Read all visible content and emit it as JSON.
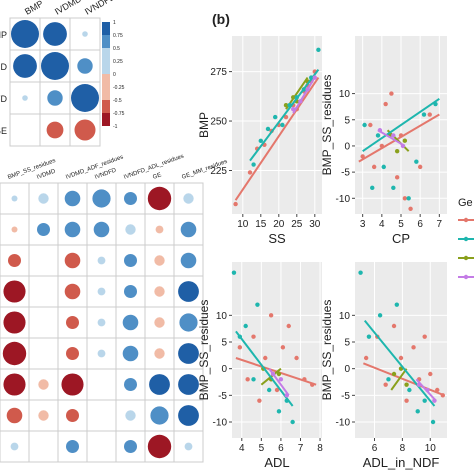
{
  "panel_b_label": "(b)",
  "legend_title": "Ge",
  "colors": {
    "red": "#e4776c",
    "green": "#8aa01c",
    "teal": "#1eb6ae",
    "purple": "#c47ce6",
    "pos_dark": "#1f5fa6",
    "pos_mid": "#4f8fc6",
    "pos_light": "#b9d6ea",
    "neg_dark": "#9d1724",
    "neg_mid": "#d05a4c",
    "neg_light": "#f1bba6",
    "panel_bg": "#ebebeb",
    "grid": "#ffffff"
  },
  "corr_top": {
    "row_labels": [
      "BMP",
      "IVDMD",
      "IVNDFD",
      "GE"
    ],
    "col_labels": [
      "BMP",
      "IVDMD",
      "IVNDFD"
    ],
    "colorbar_ticks": [
      "1",
      "0.75",
      "0.5",
      "0.25",
      "0",
      "-0.25",
      "-0.5",
      "-0.75",
      "-1"
    ],
    "cells": [
      [
        1.0,
        0.85,
        0.2
      ],
      [
        0.85,
        1.0,
        0.55
      ],
      [
        0.2,
        0.55,
        1.0
      ],
      [
        0.0,
        -0.6,
        -0.75
      ]
    ]
  },
  "corr_bottom": {
    "col_labels": [
      "BMP_SS_residues",
      "IVDMD",
      "IVDMD_ADF_residues",
      "IVNDFD",
      "IVNDFD_ADL_residues",
      "GE",
      "GE_MM_residues"
    ],
    "cells": [
      [
        0.2,
        0.4,
        0.6,
        0.7,
        0.5,
        -0.9,
        0.4
      ],
      [
        -0.2,
        0.5,
        0.6,
        0.6,
        0.4,
        -0.3,
        0.6
      ],
      [
        -0.5,
        0.0,
        -0.6,
        0.3,
        0.5,
        -0.4,
        0.6
      ],
      [
        -0.85,
        0.0,
        -0.6,
        0.3,
        0.5,
        -0.4,
        0.8
      ],
      [
        -0.85,
        0.0,
        -0.5,
        0.3,
        0.6,
        -0.4,
        0.7
      ],
      [
        -0.9,
        0.0,
        -0.5,
        0.3,
        0.6,
        -0.4,
        0.8
      ],
      [
        -0.85,
        -0.4,
        -0.85,
        0.0,
        0.5,
        0.8,
        0.8
      ],
      [
        -0.6,
        -0.4,
        -0.5,
        0.0,
        0.4,
        0.7,
        0.8
      ],
      [
        0.3,
        0.0,
        0.5,
        0.0,
        0.5,
        -0.9,
        0.3
      ]
    ]
  },
  "chart_data": [
    {
      "type": "scatter",
      "xlabel": "SS",
      "ylabel": "BMP",
      "xlim": [
        7,
        32
      ],
      "ylim": [
        203,
        293
      ],
      "xticks": [
        10,
        15,
        20,
        25,
        30
      ],
      "yticks": [
        225,
        250,
        275
      ],
      "series": [
        {
          "color": "red",
          "points": [
            [
              8,
              208
            ],
            [
              12,
              224
            ],
            [
              14,
              236
            ],
            [
              16,
              238
            ],
            [
              18,
              245
            ],
            [
              20,
              248
            ],
            [
              22,
              252
            ],
            [
              24,
              258
            ],
            [
              25,
              256
            ],
            [
              27,
              265
            ],
            [
              28,
              268
            ],
            [
              29,
              270
            ],
            [
              30,
              275
            ]
          ],
          "fit": [
            [
              8,
              210
            ],
            [
              31,
              272
            ]
          ]
        },
        {
          "color": "green",
          "points": [
            [
              22,
              258
            ],
            [
              24,
              262
            ],
            [
              25,
              260
            ],
            [
              27,
              266
            ],
            [
              28,
              270
            ]
          ],
          "fit": [
            [
              22,
              256
            ],
            [
              28,
              272
            ]
          ]
        },
        {
          "color": "teal",
          "points": [
            [
              13,
              228
            ],
            [
              15,
              240
            ],
            [
              17,
              246
            ],
            [
              19,
              252
            ],
            [
              21,
              248
            ],
            [
              23,
              258
            ],
            [
              25,
              262
            ],
            [
              27,
              266
            ],
            [
              29,
              272
            ],
            [
              31,
              286
            ]
          ],
          "fit": [
            [
              12,
              230
            ],
            [
              31,
              276
            ]
          ]
        },
        {
          "color": "purple",
          "points": [
            [
              24,
              256
            ],
            [
              26,
              260
            ],
            [
              28,
              266
            ],
            [
              30,
              272
            ]
          ],
          "fit": [
            [
              24,
              254
            ],
            [
              30,
              272
            ]
          ]
        }
      ]
    },
    {
      "type": "scatter",
      "xlabel": "CP",
      "ylabel": "BMP_SS_residues",
      "xlim": [
        2.6,
        7.4
      ],
      "ylim": [
        -13,
        21
      ],
      "xticks": [
        3,
        4,
        5,
        6,
        7
      ],
      "yticks": [
        -10,
        -5,
        0,
        5,
        10
      ],
      "series": [
        {
          "color": "red",
          "points": [
            [
              3,
              -2
            ],
            [
              3.4,
              4
            ],
            [
              3.6,
              -4
            ],
            [
              4,
              0
            ],
            [
              4.2,
              8
            ],
            [
              4.5,
              10
            ],
            [
              4.8,
              -6
            ],
            [
              5,
              2
            ],
            [
              5.2,
              -10
            ],
            [
              5.5,
              -12
            ],
            [
              6,
              -4
            ],
            [
              6.5,
              6
            ]
          ],
          "fit": [
            [
              2.8,
              -3
            ],
            [
              7,
              6
            ]
          ]
        },
        {
          "color": "green",
          "points": [
            [
              4.4,
              2
            ],
            [
              4.8,
              -1
            ],
            [
              5.2,
              1
            ]
          ],
          "fit": [
            [
              4.3,
              3
            ],
            [
              5.4,
              -1
            ]
          ]
        },
        {
          "color": "teal",
          "points": [
            [
              3.1,
              4
            ],
            [
              3.5,
              -8
            ],
            [
              3.8,
              2
            ],
            [
              4.1,
              -4
            ],
            [
              4.6,
              -8
            ],
            [
              5.4,
              -10
            ],
            [
              5.8,
              -3
            ],
            [
              6.2,
              6
            ],
            [
              6.8,
              8
            ]
          ],
          "fit": [
            [
              3,
              -1
            ],
            [
              7,
              9
            ]
          ]
        },
        {
          "color": "purple",
          "points": [
            [
              3.9,
              3
            ],
            [
              4.6,
              2
            ],
            [
              5.1,
              0
            ]
          ],
          "fit": [
            [
              3.8,
              3
            ],
            [
              5.2,
              0
            ]
          ]
        }
      ]
    },
    {
      "type": "scatter",
      "xlabel": "ADL",
      "ylabel": "BMP_SS_residues",
      "xlim": [
        3.5,
        8.1
      ],
      "ylim": [
        -13,
        20
      ],
      "xticks": [
        4,
        5,
        6,
        7,
        8
      ],
      "yticks": [
        -10,
        -5,
        0,
        5,
        10
      ],
      "series": [
        {
          "color": "red",
          "points": [
            [
              3.9,
              4
            ],
            [
              4.3,
              -2
            ],
            [
              4.6,
              6
            ],
            [
              4.9,
              -6
            ],
            [
              5.2,
              2
            ],
            [
              5.5,
              10
            ],
            [
              5.8,
              -4
            ],
            [
              6.1,
              4
            ],
            [
              6.4,
              8
            ],
            [
              6.8,
              2
            ],
            [
              7.2,
              -2
            ],
            [
              7.6,
              -3
            ]
          ],
          "fit": [
            [
              3.7,
              2
            ],
            [
              7.8,
              -3
            ]
          ]
        },
        {
          "color": "green",
          "points": [
            [
              5.1,
              0
            ],
            [
              5.5,
              -2
            ],
            [
              5.9,
              -1
            ]
          ],
          "fit": [
            [
              5,
              -3
            ],
            [
              6,
              0
            ]
          ]
        },
        {
          "color": "teal",
          "points": [
            [
              3.6,
              18
            ],
            [
              3.9,
              6
            ],
            [
              4.2,
              8
            ],
            [
              4.6,
              -2
            ],
            [
              4.8,
              12
            ],
            [
              5.4,
              -4
            ],
            [
              5.9,
              -8
            ],
            [
              6.3,
              -6
            ],
            [
              6.6,
              -10
            ]
          ],
          "fit": [
            [
              3.7,
              7
            ],
            [
              6.6,
              -7
            ]
          ]
        },
        {
          "color": "purple",
          "points": [
            [
              5.6,
              -1
            ],
            [
              6,
              -2
            ],
            [
              6.3,
              -5
            ]
          ],
          "fit": [
            [
              5.4,
              0
            ],
            [
              6.4,
              -5
            ]
          ]
        }
      ]
    },
    {
      "type": "scatter",
      "xlabel": "ADL_in_NDF",
      "ylabel": "BMP_SS_residues",
      "xlim": [
        4.6,
        11.2
      ],
      "ylim": [
        -13,
        20
      ],
      "xticks": [
        6,
        8,
        10
      ],
      "yticks": [
        -10,
        -5,
        0,
        5,
        10
      ],
      "series": [
        {
          "color": "red",
          "points": [
            [
              5.4,
              2
            ],
            [
              6.2,
              6
            ],
            [
              6.8,
              -3
            ],
            [
              7.4,
              8
            ],
            [
              7.9,
              2
            ],
            [
              8.3,
              -6
            ],
            [
              8.8,
              4
            ],
            [
              9.2,
              -2
            ],
            [
              9.6,
              6
            ],
            [
              10,
              -1
            ],
            [
              10.5,
              -4
            ],
            [
              10.9,
              -5
            ]
          ],
          "fit": [
            [
              5.2,
              1
            ],
            [
              11,
              -5
            ]
          ]
        },
        {
          "color": "green",
          "points": [
            [
              7.4,
              -1
            ],
            [
              7.9,
              0
            ],
            [
              8.3,
              -3
            ]
          ],
          "fit": [
            [
              7.2,
              -4
            ],
            [
              8.3,
              0
            ]
          ]
        },
        {
          "color": "teal",
          "points": [
            [
              5,
              18
            ],
            [
              5.6,
              6
            ],
            [
              6.4,
              10
            ],
            [
              7,
              -2
            ],
            [
              7.6,
              12
            ],
            [
              8.5,
              -4
            ],
            [
              9.1,
              -8
            ],
            [
              9.6,
              -6
            ],
            [
              10.2,
              -10
            ]
          ],
          "fit": [
            [
              5.3,
              9
            ],
            [
              10.3,
              -7
            ]
          ]
        },
        {
          "color": "purple",
          "points": [
            [
              9.2,
              -3
            ],
            [
              9.8,
              -4
            ],
            [
              10.3,
              -6
            ]
          ],
          "fit": [
            [
              9,
              -2
            ],
            [
              10.4,
              -6
            ]
          ]
        }
      ]
    }
  ]
}
